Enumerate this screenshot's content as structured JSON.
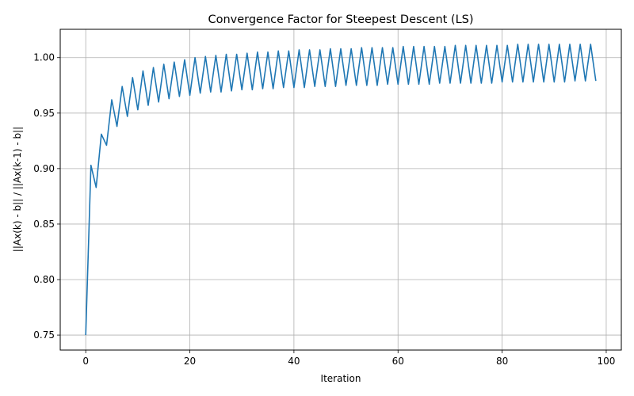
{
  "chart_data": {
    "type": "line",
    "title": "Convergence Factor for Steepest Descent (LS)",
    "xlabel": "Iteration",
    "ylabel": "||Ax(k) - b|| / ||Ax(k-1) - b||",
    "xlim": [
      -4.9,
      102.9
    ],
    "ylim": [
      0.7365,
      1.0255
    ],
    "xticks": [
      0,
      20,
      40,
      60,
      80,
      100
    ],
    "yticks": [
      0.75,
      0.8,
      0.85,
      0.9,
      0.95,
      1.0
    ],
    "xtick_labels": [
      "0",
      "20",
      "40",
      "60",
      "80",
      "100"
    ],
    "ytick_labels": [
      "0.75",
      "0.80",
      "0.85",
      "0.90",
      "0.95",
      "1.00"
    ],
    "grid": true,
    "line_color": "#1f77b4",
    "x": [
      0,
      1,
      2,
      3,
      4,
      5,
      6,
      7,
      8,
      9,
      10,
      11,
      12,
      13,
      14,
      15,
      16,
      17,
      18,
      19,
      20,
      21,
      22,
      23,
      24,
      25,
      26,
      27,
      28,
      29,
      30,
      31,
      32,
      33,
      34,
      35,
      36,
      37,
      38,
      39,
      40,
      41,
      42,
      43,
      44,
      45,
      46,
      47,
      48,
      49,
      50,
      51,
      52,
      53,
      54,
      55,
      56,
      57,
      58,
      59,
      60,
      61,
      62,
      63,
      64,
      65,
      66,
      67,
      68,
      69,
      70,
      71,
      72,
      73,
      74,
      75,
      76,
      77,
      78,
      79,
      80,
      81,
      82,
      83,
      84,
      85,
      86,
      87,
      88,
      89,
      90,
      91,
      92,
      93,
      94,
      95,
      96,
      97,
      98
    ],
    "y": [
      0.75,
      0.903,
      0.883,
      0.931,
      0.921,
      0.962,
      0.938,
      0.974,
      0.947,
      0.982,
      0.953,
      0.988,
      0.957,
      0.991,
      0.96,
      0.994,
      0.963,
      0.996,
      0.965,
      0.998,
      0.966,
      1.0,
      0.968,
      1.001,
      0.969,
      1.002,
      0.969,
      1.003,
      0.97,
      1.003,
      0.971,
      1.004,
      0.971,
      1.005,
      0.972,
      1.005,
      0.972,
      1.006,
      0.973,
      1.006,
      0.973,
      1.007,
      0.973,
      1.007,
      0.974,
      1.007,
      0.974,
      1.008,
      0.974,
      1.008,
      0.975,
      1.008,
      0.975,
      1.009,
      0.975,
      1.009,
      0.975,
      1.009,
      0.976,
      1.009,
      0.976,
      1.01,
      0.976,
      1.01,
      0.976,
      1.01,
      0.976,
      1.01,
      0.977,
      1.01,
      0.977,
      1.011,
      0.977,
      1.011,
      0.977,
      1.011,
      0.977,
      1.011,
      0.977,
      1.011,
      0.978,
      1.011,
      0.978,
      1.012,
      0.978,
      1.012,
      0.978,
      1.012,
      0.978,
      1.012,
      0.978,
      1.012,
      0.978,
      1.012,
      0.979,
      1.012,
      0.979,
      1.012,
      0.979
    ]
  }
}
